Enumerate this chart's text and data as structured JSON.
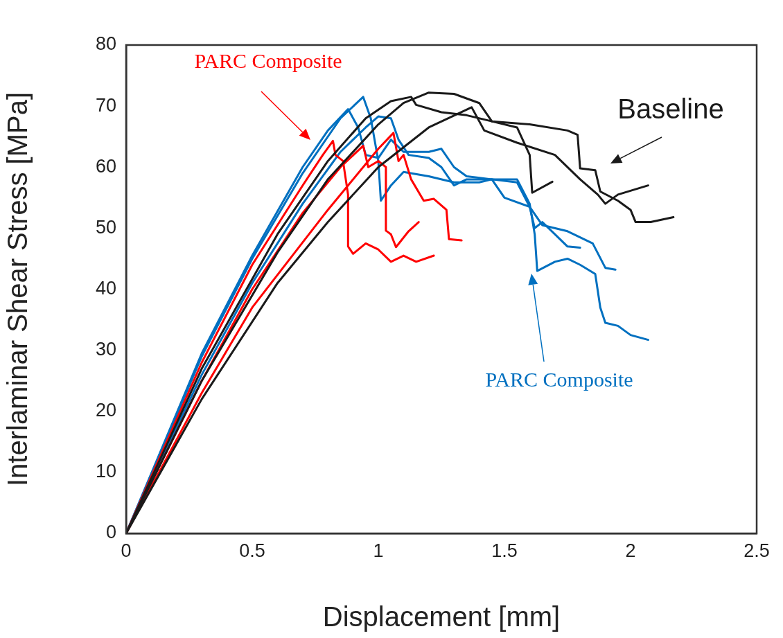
{
  "chart_data": {
    "type": "line",
    "xlabel": "Displacement [mm]",
    "ylabel": "Interlaminar Shear Stress [MPa]",
    "xlim": [
      0,
      2.5
    ],
    "xticks": [
      0,
      0.5,
      1,
      1.5,
      2,
      2.5
    ],
    "ylim": [
      0,
      80
    ],
    "yticks": [
      0,
      10,
      20,
      30,
      40,
      50,
      60,
      70,
      80
    ],
    "grid": false,
    "legend": false,
    "marker": "none",
    "line_style": "solid",
    "series": [
      {
        "color": "#1a1a1a",
        "x": [
          0,
          0.3,
          0.6,
          0.8,
          0.95,
          1.05,
          1.13,
          1.15,
          1.25,
          1.35,
          1.45,
          1.55,
          1.6,
          1.61,
          1.69
        ],
        "values": [
          0,
          27,
          49,
          61,
          68,
          70.8,
          71.5,
          70.2,
          69,
          68.5,
          67.5,
          66.5,
          62,
          55.8,
          57.6
        ]
      },
      {
        "color": "#1a1a1a",
        "x": [
          0,
          0.3,
          0.6,
          0.8,
          1.0,
          1.1,
          1.2,
          1.3,
          1.4,
          1.45,
          1.6,
          1.75,
          1.79,
          1.8,
          1.86,
          1.88,
          1.95,
          2.0,
          2.02,
          2.08,
          2.17
        ],
        "values": [
          0,
          25,
          46,
          58,
          67,
          70.5,
          72.2,
          72,
          70.5,
          67.5,
          67,
          66,
          65.3,
          59.8,
          59.5,
          56,
          54.5,
          53,
          51,
          51,
          51.8
        ]
      },
      {
        "color": "#1a1a1a",
        "x": [
          0,
          0.3,
          0.6,
          0.8,
          1.0,
          1.2,
          1.37,
          1.42,
          1.55,
          1.7,
          1.8,
          1.87,
          1.9,
          1.95,
          2.07
        ],
        "values": [
          0,
          22,
          41,
          51,
          60,
          66.5,
          69.8,
          66,
          64,
          62,
          58,
          55.5,
          54,
          55.5,
          57
        ]
      },
      {
        "color": "#ff0000",
        "x": [
          0,
          0.3,
          0.5,
          0.7,
          0.78,
          0.82,
          0.83,
          0.86,
          0.88,
          0.88,
          0.9,
          0.95,
          1.0,
          1.05,
          1.1,
          1.15,
          1.22
        ],
        "values": [
          0,
          28,
          44,
          57,
          62,
          64.3,
          62,
          61,
          55.5,
          47,
          45.8,
          47.5,
          46.5,
          44.5,
          45.5,
          44.5,
          45.5
        ]
      },
      {
        "color": "#ff0000",
        "x": [
          0,
          0.3,
          0.5,
          0.7,
          0.85,
          0.94,
          0.96,
          1.0,
          1.03,
          1.03,
          1.05,
          1.07,
          1.12,
          1.16
        ],
        "values": [
          0,
          25,
          40,
          52.5,
          60,
          63.5,
          60,
          61,
          60,
          49.6,
          49,
          46.9,
          49.5,
          51
        ]
      },
      {
        "color": "#ff0000",
        "x": [
          0,
          0.3,
          0.5,
          0.8,
          1.0,
          1.06,
          1.08,
          1.1,
          1.13,
          1.18,
          1.22,
          1.27,
          1.28,
          1.33
        ],
        "values": [
          0,
          23,
          37,
          53,
          63,
          65.6,
          61,
          62,
          58,
          54.5,
          54.8,
          53,
          48.2,
          48
        ]
      },
      {
        "color": "#0070c0",
        "x": [
          0,
          0.3,
          0.5,
          0.7,
          0.85,
          0.94,
          0.97,
          1.0,
          1.01,
          1.05,
          1.1,
          1.2,
          1.3,
          1.4,
          1.45,
          1.5,
          1.6,
          1.62,
          1.65,
          1.7,
          1.75,
          1.8
        ],
        "values": [
          0,
          29,
          45,
          59,
          68,
          71.5,
          68,
          61,
          54.5,
          57,
          59.2,
          58.5,
          57.5,
          57.5,
          58,
          55,
          53.5,
          50,
          51,
          49,
          47,
          46.8
        ]
      },
      {
        "color": "#0070c0",
        "x": [
          0,
          0.3,
          0.5,
          0.7,
          0.8,
          0.88,
          0.92,
          0.95,
          1.0,
          1.05,
          1.1,
          1.2,
          1.25,
          1.3,
          1.35,
          1.45,
          1.55,
          1.6,
          1.65,
          1.75,
          1.85,
          1.9,
          1.94
        ],
        "values": [
          0,
          29.5,
          45.5,
          60,
          66,
          69.5,
          66.5,
          62,
          61.5,
          64.5,
          62.5,
          62.5,
          63,
          60,
          58.5,
          58,
          57.5,
          53.5,
          50.5,
          49.5,
          47.5,
          43.5,
          43.2
        ]
      },
      {
        "color": "#0070c0",
        "x": [
          0,
          0.3,
          0.5,
          0.7,
          0.85,
          0.95,
          1.0,
          1.05,
          1.08,
          1.12,
          1.2,
          1.25,
          1.3,
          1.35,
          1.4,
          1.55,
          1.6,
          1.62,
          1.63,
          1.7,
          1.75,
          1.8,
          1.86,
          1.88,
          1.9,
          1.95,
          2.0,
          2.07
        ],
        "values": [
          0,
          26,
          41,
          54,
          62.5,
          66.5,
          68.3,
          68,
          64.5,
          62,
          61.5,
          60,
          57,
          58,
          58,
          58,
          54,
          49,
          43,
          44.5,
          45,
          44,
          42.5,
          37,
          34.5,
          34,
          32.5,
          31.7
        ]
      }
    ],
    "annotations": [
      "PARC Composite",
      "PARC Composite",
      "Baseline"
    ]
  }
}
